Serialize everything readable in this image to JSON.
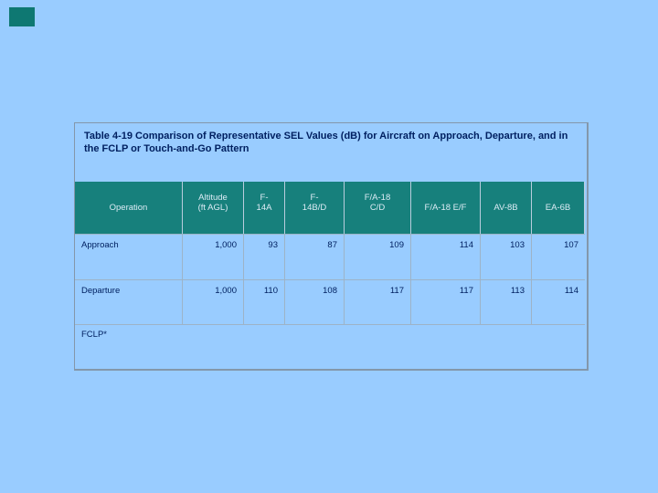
{
  "slide": {
    "background_color": "#99ccff",
    "accent_rect_color": "#0e7872"
  },
  "table": {
    "title": "Table 4-19   Comparison of Representative SEL Values (dB) for Aircraft on Approach, Departure, and in the FCLP or Touch-and-Go Pattern",
    "header_bg_color": "#17807c",
    "header_text_color": "#dcebf5",
    "body_text_color": "#002060",
    "headers": [
      "Operation",
      "Altitude\n(ft AGL)",
      "F-\n14A",
      "F-\n14B/D",
      "F/A-18\nC/D",
      "F/A-18 E/F",
      "AV-8B",
      "EA-6B"
    ],
    "rows": [
      {
        "cells": [
          "Approach",
          "1,000",
          "93",
          "87",
          "109",
          "114",
          "103",
          "107"
        ]
      },
      {
        "cells": [
          "Departure",
          "1,000",
          "110",
          "108",
          "117",
          "117",
          "113",
          "114"
        ]
      }
    ],
    "footer_label": "FCLP*"
  },
  "chart_data": {
    "type": "table",
    "title": "Table 4-19 Comparison of Representative SEL Values (dB) for Aircraft on Approach, Departure, and in the FCLP or Touch-and-Go Pattern",
    "columns": [
      "Operation",
      "Altitude (ft AGL)",
      "F-14A",
      "F-14B/D",
      "F/A-18 C/D",
      "F/A-18 E/F",
      "AV-8B",
      "EA-6B"
    ],
    "rows": [
      [
        "Approach",
        "1,000",
        93,
        87,
        109,
        114,
        103,
        107
      ],
      [
        "Departure",
        "1,000",
        110,
        108,
        117,
        117,
        113,
        114
      ],
      [
        "FCLP*",
        "",
        "",
        "",
        "",
        "",
        "",
        ""
      ]
    ]
  }
}
